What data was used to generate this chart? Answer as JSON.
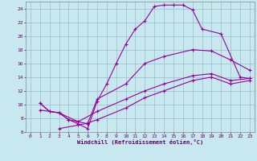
{
  "xlabel": "Windchill (Refroidissement éolien,°C)",
  "background_color": "#c8e8f0",
  "grid_color": "#99bbcc",
  "line_color": "#990099",
  "xlim": [
    -0.5,
    23.5
  ],
  "ylim": [
    6,
    25
  ],
  "xticks": [
    0,
    1,
    2,
    3,
    4,
    5,
    6,
    7,
    8,
    9,
    10,
    11,
    12,
    13,
    14,
    15,
    16,
    17,
    18,
    19,
    20,
    21,
    22,
    23
  ],
  "yticks": [
    6,
    8,
    10,
    12,
    14,
    16,
    18,
    20,
    22,
    24
  ],
  "line1_x": [
    1,
    2,
    3,
    4,
    5,
    6,
    7,
    8,
    9,
    10,
    11,
    12,
    13,
    14,
    15,
    16,
    17,
    18,
    20,
    22,
    23
  ],
  "line1_y": [
    10.2,
    9.0,
    8.8,
    7.8,
    7.2,
    6.5,
    10.5,
    13.0,
    16.0,
    18.8,
    21.0,
    22.2,
    24.3,
    24.5,
    24.5,
    24.5,
    23.8,
    21.0,
    20.3,
    14.0,
    13.8
  ],
  "line2_x": [
    1,
    2,
    3,
    4,
    5,
    6,
    7,
    10,
    12,
    14,
    17,
    19,
    21,
    23
  ],
  "line2_y": [
    10.2,
    9.0,
    8.8,
    7.8,
    7.5,
    7.2,
    10.8,
    13.0,
    16.0,
    17.0,
    18.0,
    17.8,
    16.5,
    15.0
  ],
  "line3_x": [
    1,
    3,
    5,
    7,
    10,
    12,
    14,
    17,
    19,
    21,
    23
  ],
  "line3_y": [
    9.2,
    8.8,
    7.5,
    9.0,
    10.8,
    12.0,
    13.0,
    14.2,
    14.5,
    13.5,
    13.8
  ],
  "line4_x": [
    3,
    5,
    6,
    7,
    10,
    12,
    14,
    17,
    19,
    21,
    23
  ],
  "line4_y": [
    6.5,
    7.0,
    7.3,
    7.8,
    9.5,
    11.0,
    12.0,
    13.5,
    14.0,
    13.0,
    13.5
  ]
}
